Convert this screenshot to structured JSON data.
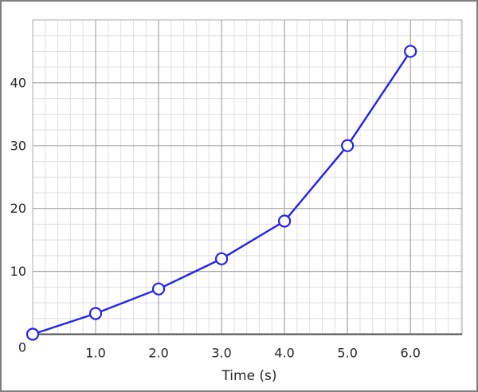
{
  "window": {
    "background": "#ffffff",
    "border_color": "#7f7f7f"
  },
  "chart_data": {
    "type": "line",
    "title": "",
    "xlabel": "Time (s)",
    "ylabel": "",
    "x": [
      0,
      1,
      2,
      3,
      4,
      5,
      6
    ],
    "y": [
      0,
      3.3,
      7.2,
      12,
      18,
      30,
      45
    ],
    "xlim": [
      0,
      6.82
    ],
    "ylim": [
      0,
      50
    ],
    "x_major_step": 1,
    "x_minor_step": 0.2,
    "y_major_step": 10,
    "y_minor_step": 2.5,
    "x_tick_values": [
      1,
      2,
      3,
      4,
      5,
      6
    ],
    "x_tick_labels": [
      "1.0",
      "2.0",
      "3.0",
      "4.0",
      "5.0",
      "6.0"
    ],
    "y_tick_values": [
      0,
      10,
      20,
      30,
      40
    ],
    "y_tick_labels": [
      "0",
      "10",
      "20",
      "30",
      "40"
    ],
    "grid": "major+minor",
    "legend": "none",
    "marker": "open-circle",
    "colors": {
      "line": "#2222ee",
      "marker_fill": "#ffffff",
      "major_grid": "#a6a6a6",
      "minor_grid": "#dfdfdf",
      "axis": "#4d4d4d",
      "plot_border": "#aaaaaa",
      "label": "#262626"
    }
  }
}
